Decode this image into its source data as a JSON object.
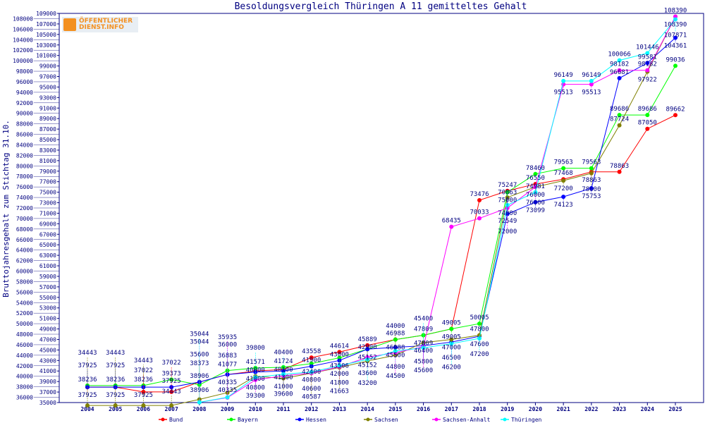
{
  "chart_data": {
    "type": "line",
    "title": "Besoldungsvergleich Thüringen A 11 gemitteltes Gehalt",
    "ylabel": "Bruttojahresgehalt zum Stichtag 31.10.",
    "xlabel": "",
    "ylim": [
      34000,
      109000
    ],
    "ytick_step": 1000,
    "grid": false,
    "legend_position": "bottom",
    "x": [
      2004,
      2005,
      2006,
      2007,
      2008,
      2009,
      2010,
      2011,
      2012,
      2013,
      2014,
      2015,
      2016,
      2017,
      2018,
      2019,
      2020,
      2021,
      2022,
      2023,
      2024,
      2025
    ],
    "series": [
      {
        "name": "Bund",
        "color": "#ff0000",
        "values": [
          37925,
          37925,
          37022,
          37022,
          38906,
          40335,
          41000,
          41300,
          43558,
          44614,
          45889,
          46988,
          47809,
          49005,
          73476,
          75247,
          76550,
          77468,
          78863,
          78863,
          87050,
          89662
        ]
      },
      {
        "name": "Bayern",
        "color": "#00ff00",
        "values": [
          38236,
          38236,
          38236,
          39373,
          38373,
          41077,
          41571,
          41724,
          42400,
          43506,
          45152,
          46988,
          47809,
          49005,
          50005,
          75000,
          78460,
          79563,
          79563,
          89686,
          89686,
          99036
        ]
      },
      {
        "name": "Hessen",
        "color": "#0000ff",
        "values": [
          37925,
          37925,
          37925,
          37925,
          38906,
          40335,
          40800,
          41000,
          41900,
          43000,
          45152,
          45500,
          45800,
          46500,
          47600,
          70863,
          73099,
          74123,
          75753,
          96681,
          99581,
          104361
        ]
      },
      {
        "name": "Sachsen",
        "color": "#808000",
        "values": [
          34443,
          34443,
          34443,
          34443,
          35600,
          36883,
          40000,
          39600,
          40587,
          41663,
          42900,
          44000,
          46400,
          47000,
          47800,
          74000,
          76000,
          77200,
          78600,
          87724,
          97922,
          108390
        ]
      },
      {
        "name": "Sachsen-Anhalt",
        "color": "#ff00ff",
        "values": [
          null,
          null,
          null,
          null,
          35044,
          35935,
          39300,
          40100,
          40600,
          41800,
          43600,
          44500,
          45600,
          68435,
          70033,
          72000,
          76000,
          95513,
          95513,
          98182,
          98182,
          108390
        ]
      },
      {
        "name": "Thüringen",
        "color": "#00ffff",
        "values": [
          null,
          null,
          null,
          null,
          35044,
          36000,
          39800,
          40400,
          40800,
          42000,
          43200,
          44800,
          45400,
          46200,
          47200,
          72549,
          74981,
          96149,
          96149,
          100066,
          101446,
          107871
        ]
      }
    ]
  },
  "logo": {
    "line1": "ÖFFENTLICHER",
    "line2": "DIENST.INFO"
  },
  "colors": {
    "frame": "#000080",
    "text": "#000080"
  }
}
